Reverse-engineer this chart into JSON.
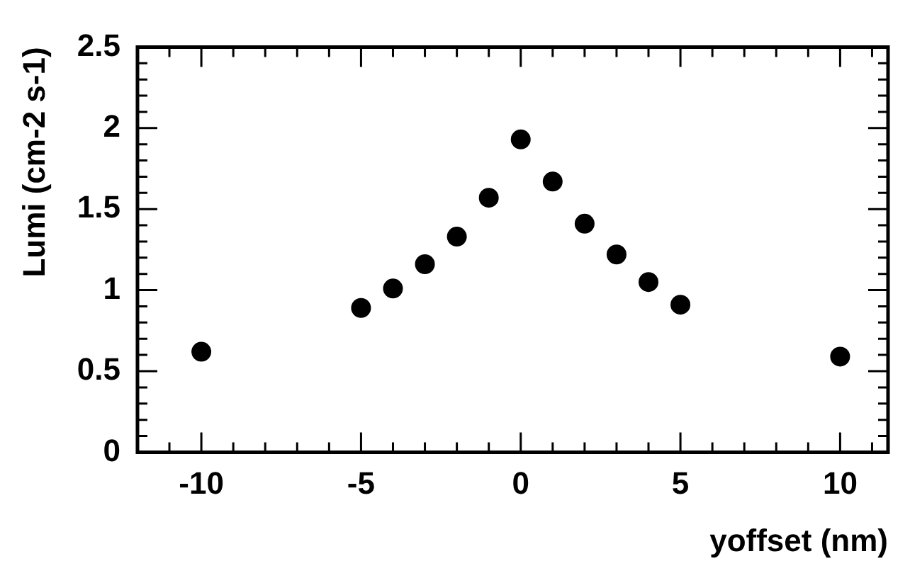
{
  "chart_data": {
    "type": "scatter",
    "xlabel": "yoffset (nm)",
    "ylabel": "Lumi (cm-2 s-1)",
    "x": [
      -10,
      -5,
      -4,
      -3,
      -2,
      -1,
      0,
      1,
      2,
      3,
      4,
      5,
      10
    ],
    "series": [
      {
        "color": "#000000",
        "values": [
          0.62,
          0.89,
          1.01,
          1.16,
          1.33,
          1.57,
          1.93,
          1.67,
          1.41,
          1.22,
          1.05,
          0.91,
          0.59
        ]
      }
    ],
    "xlim": [
      -12,
      11.5
    ],
    "xticks": [
      -10,
      -5,
      0,
      5,
      10
    ],
    "ylim": [
      0,
      2.5
    ],
    "yticks": [
      0,
      0.5,
      1,
      1.5,
      2,
      2.5
    ],
    "marker": "circle",
    "grid": false,
    "legend": false
  }
}
